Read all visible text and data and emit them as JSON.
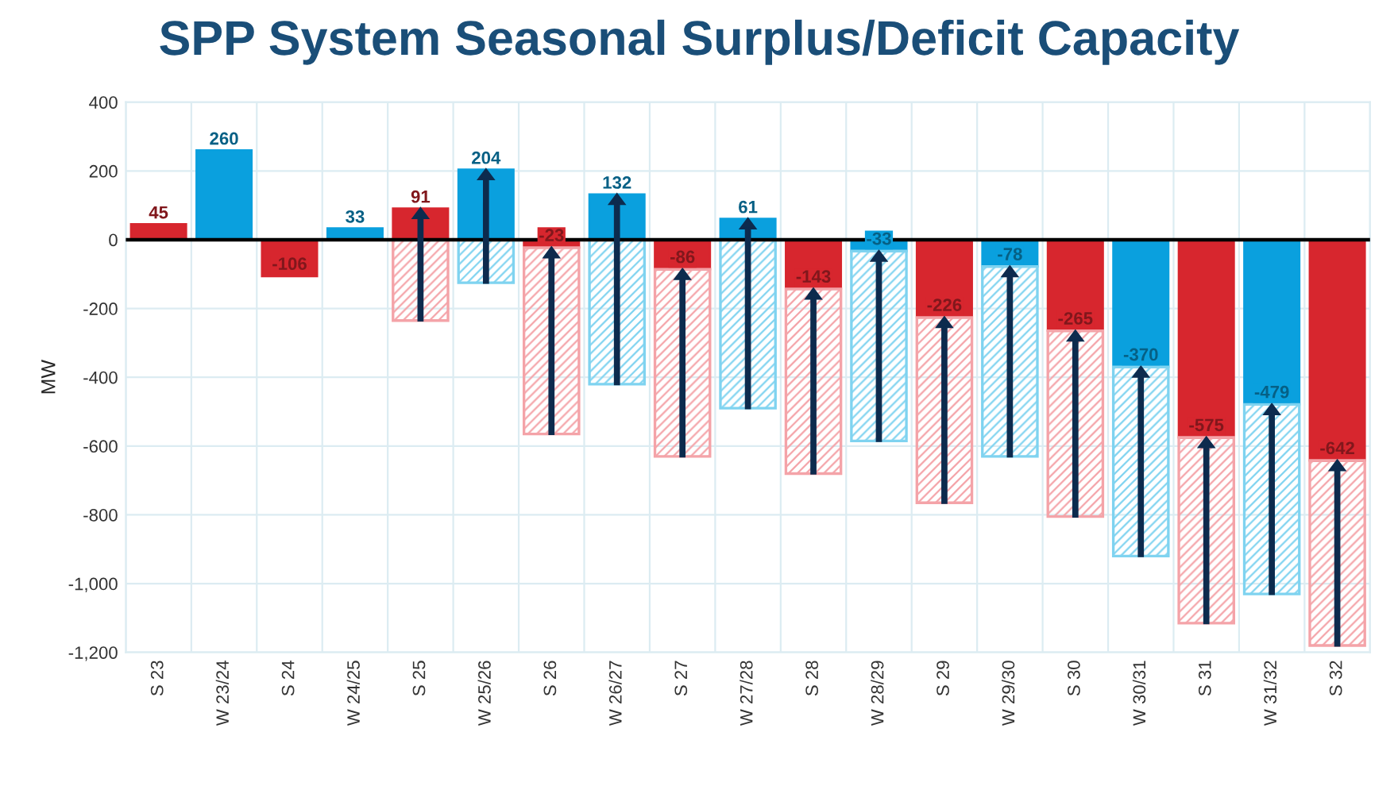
{
  "chart_data": {
    "type": "bar",
    "title": "SPP System Seasonal Surplus/Deficit Capacity",
    "ylabel": "MW",
    "categories": [
      "S 23",
      "W 23/24",
      "S 24",
      "W 24/25",
      "S 25",
      "W 25/26",
      "S 26",
      "W 26/27",
      "S 27",
      "W 27/28",
      "S 28",
      "W 28/29",
      "S 29",
      "W 29/30",
      "S 30",
      "W 30/31",
      "S 31",
      "W 31/32",
      "S 32"
    ],
    "series": [
      {
        "values": [
          45,
          260,
          -106,
          33,
          91,
          204,
          -23,
          132,
          -86,
          61,
          -143,
          -33,
          -226,
          -78,
          -265,
          -370,
          -575,
          -479,
          -642
        ],
        "colors": [
          "#d7262e",
          "#0aa0de",
          "#d7262e",
          "#0aa0de",
          "#d7262e",
          "#0aa0de",
          "#d7262e",
          "#0aa0de",
          "#d7262e",
          "#0aa0de",
          "#d7262e",
          "#0aa0de",
          "#d7262e",
          "#0aa0de",
          "#d7262e",
          "#0aa0de",
          "#d7262e",
          "#0aa0de",
          "#d7262e"
        ],
        "data_labels": true
      },
      {
        "values": [
          null,
          null,
          null,
          null,
          -235,
          -125,
          -542,
          -420,
          -544,
          -490,
          -537,
          -552,
          -539,
          -552,
          -540,
          -550,
          -540,
          -551,
          -538
        ],
        "colors": [
          "#f4a3a8",
          "#7fd3f0",
          "#f4a3a8",
          "#7fd3f0",
          "#f4a3a8",
          "#7fd3f0",
          "#f4a3a8",
          "#7fd3f0",
          "#f4a3a8",
          "#7fd3f0",
          "#f4a3a8",
          "#7fd3f0",
          "#f4a3a8",
          "#7fd3f0",
          "#f4a3a8",
          "#7fd3f0",
          "#f4a3a8",
          "#7fd3f0",
          "#f4a3a8"
        ]
      }
    ],
    "stacked": true,
    "ylim": [
      -1200,
      400
    ],
    "yticks": [
      {
        "value": -1200,
        "label": "-1,200"
      },
      {
        "value": -1000,
        "label": "-1,000"
      },
      -800,
      -600,
      -400,
      -200,
      0,
      200,
      400
    ],
    "ref_lines": [
      {
        "axis": "y",
        "value": 0,
        "color": "#000000"
      }
    ],
    "grid": true,
    "legend": false
  }
}
